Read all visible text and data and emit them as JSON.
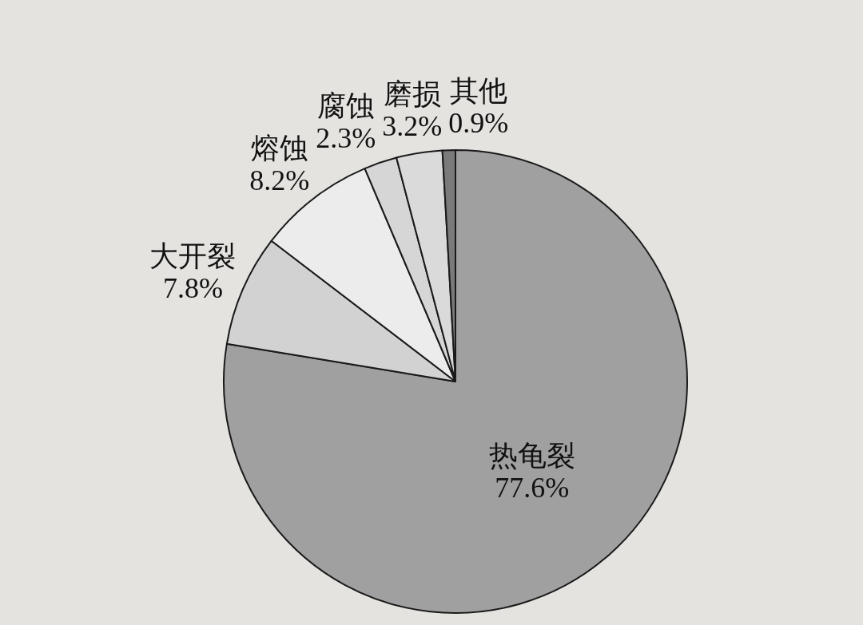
{
  "chart_data": {
    "type": "pie",
    "categories": [
      "热龟裂",
      "大开裂",
      "熔蚀",
      "腐蚀",
      "磨损",
      "其他"
    ],
    "values": [
      77.6,
      7.8,
      8.2,
      2.3,
      3.2,
      0.9
    ],
    "value_labels": [
      "77.6%",
      "7.8%",
      "8.2%",
      "2.3%",
      "3.2%",
      "0.9%"
    ],
    "colors": [
      "#a0a0a0",
      "#d2d2d2",
      "#ececec",
      "#d6d6d6",
      "#dadada",
      "#7a7a7a"
    ]
  }
}
